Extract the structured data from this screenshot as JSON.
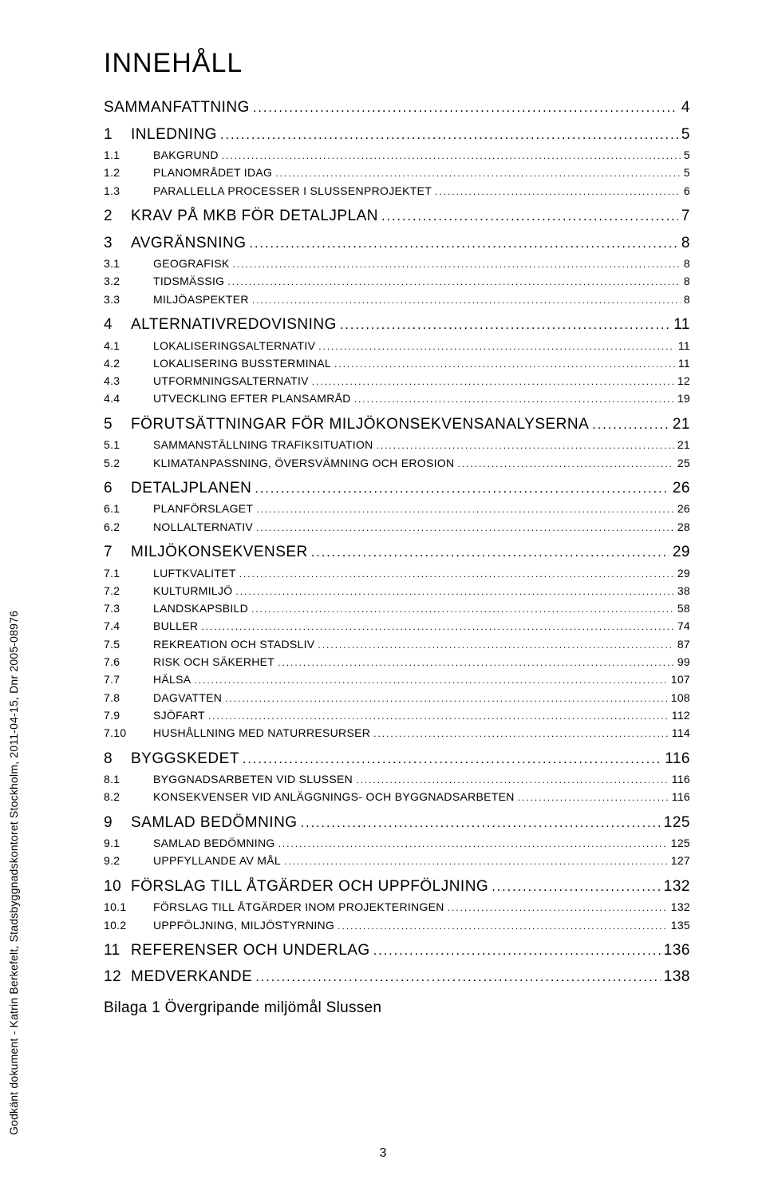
{
  "vertical_note": "Godkänt dokument - Katrin Berkefelt, Stadsbyggnadskontoret Stockholm, 2011-04-15, Dnr 2005-08976",
  "title": "INNEHÅLL",
  "page_number": "3",
  "bilaga": "Bilaga 1 Övergripande miljömål Slussen",
  "toc": [
    {
      "level": 1,
      "num": "",
      "label": "SAMMANFATTNING",
      "page": "4",
      "bare": true
    },
    {
      "level": 1,
      "num": "1",
      "label": "INLEDNING",
      "page": "5"
    },
    {
      "level": 2,
      "num": "1.1",
      "label": "BAKGRUND",
      "page": "5"
    },
    {
      "level": 2,
      "num": "1.2",
      "label": "PLANOMRÅDET IDAG",
      "page": "5"
    },
    {
      "level": 2,
      "num": "1.3",
      "label": "PARALLELLA PROCESSER I SLUSSENPROJEKTET",
      "page": "6"
    },
    {
      "level": 1,
      "num": "2",
      "label": "KRAV PÅ MKB FÖR DETALJPLAN",
      "page": "7"
    },
    {
      "level": 1,
      "num": "3",
      "label": "AVGRÄNSNING",
      "page": "8"
    },
    {
      "level": 2,
      "num": "3.1",
      "label": "GEOGRAFISK",
      "page": "8"
    },
    {
      "level": 2,
      "num": "3.2",
      "label": "TIDSMÄSSIG",
      "page": "8"
    },
    {
      "level": 2,
      "num": "3.3",
      "label": "MILJÖASPEKTER",
      "page": "8"
    },
    {
      "level": 1,
      "num": "4",
      "label": "ALTERNATIVREDOVISNING",
      "page": "11"
    },
    {
      "level": 2,
      "num": "4.1",
      "label": "LOKALISERINGSALTERNATIV",
      "page": "11"
    },
    {
      "level": 2,
      "num": "4.2",
      "label": "LOKALISERING BUSSTERMINAL",
      "page": "11"
    },
    {
      "level": 2,
      "num": "4.3",
      "label": "UTFORMNINGSALTERNATIV",
      "page": "12"
    },
    {
      "level": 2,
      "num": "4.4",
      "label": "UTVECKLING EFTER PLANSAMRÅD",
      "page": "19"
    },
    {
      "level": 1,
      "num": "5",
      "label": "FÖRUTSÄTTNINGAR FÖR MILJÖKONSEKVENSANALYSERNA",
      "page": "21"
    },
    {
      "level": 2,
      "num": "5.1",
      "label": "SAMMANSTÄLLNING TRAFIKSITUATION",
      "page": "21"
    },
    {
      "level": 2,
      "num": "5.2",
      "label": "KLIMATANPASSNING, ÖVERSVÄMNING OCH EROSION",
      "page": "25"
    },
    {
      "level": 1,
      "num": "6",
      "label": "DETALJPLANEN",
      "page": "26"
    },
    {
      "level": 2,
      "num": "6.1",
      "label": "PLANFÖRSLAGET",
      "page": "26"
    },
    {
      "level": 2,
      "num": "6.2",
      "label": "NOLLALTERNATIV",
      "page": "28"
    },
    {
      "level": 1,
      "num": "7",
      "label": "MILJÖKONSEKVENSER",
      "page": "29"
    },
    {
      "level": 2,
      "num": "7.1",
      "label": "LUFTKVALITET",
      "page": "29"
    },
    {
      "level": 2,
      "num": "7.2",
      "label": "KULTURMILJÖ",
      "page": "38"
    },
    {
      "level": 2,
      "num": "7.3",
      "label": "LANDSKAPSBILD",
      "page": "58"
    },
    {
      "level": 2,
      "num": "7.4",
      "label": "BULLER",
      "page": "74"
    },
    {
      "level": 2,
      "num": "7.5",
      "label": "REKREATION OCH STADSLIV",
      "page": "87"
    },
    {
      "level": 2,
      "num": "7.6",
      "label": "RISK OCH SÄKERHET",
      "page": "99"
    },
    {
      "level": 2,
      "num": "7.7",
      "label": "HÄLSA",
      "page": "107"
    },
    {
      "level": 2,
      "num": "7.8",
      "label": "DAGVATTEN",
      "page": "108"
    },
    {
      "level": 2,
      "num": "7.9",
      "label": "SJÖFART",
      "page": "112"
    },
    {
      "level": 2,
      "num": "7.10",
      "label": "HUSHÅLLNING MED NATURRESURSER",
      "page": "114"
    },
    {
      "level": 1,
      "num": "8",
      "label": "BYGGSKEDET",
      "page": "116"
    },
    {
      "level": 2,
      "num": "8.1",
      "label": "BYGGNADSARBETEN VID SLUSSEN",
      "page": "116"
    },
    {
      "level": 2,
      "num": "8.2",
      "label": "KONSEKVENSER VID ANLÄGGNINGS- OCH BYGGNADSARBETEN",
      "page": "116"
    },
    {
      "level": 1,
      "num": "9",
      "label": "SAMLAD BEDÖMNING",
      "page": "125"
    },
    {
      "level": 2,
      "num": "9.1",
      "label": "SAMLAD BEDÖMNING",
      "page": "125"
    },
    {
      "level": 2,
      "num": "9.2",
      "label": "UPPFYLLANDE AV MÅL",
      "page": "127"
    },
    {
      "level": 1,
      "num": "10",
      "label": "FÖRSLAG TILL ÅTGÄRDER OCH UPPFÖLJNING",
      "page": "132"
    },
    {
      "level": 2,
      "num": "10.1",
      "label": "FÖRSLAG TILL ÅTGÄRDER INOM PROJEKTERINGEN",
      "page": "132"
    },
    {
      "level": 2,
      "num": "10.2",
      "label": "UPPFÖLJNING, MILJÖSTYRNING",
      "page": "135"
    },
    {
      "level": 1,
      "num": "11",
      "label": "REFERENSER OCH UNDERLAG",
      "page": "136"
    },
    {
      "level": 1,
      "num": "12",
      "label": "MEDVERKANDE",
      "page": "138"
    }
  ]
}
